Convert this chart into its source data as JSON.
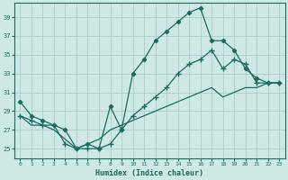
{
  "xlabel": "Humidex (Indice chaleur)",
  "bg_color": "#cde8e5",
  "grid_color": "#aaccca",
  "line_color": "#1a6b62",
  "xlim": [
    -0.5,
    23.5
  ],
  "ylim": [
    24.0,
    40.5
  ],
  "xticks": [
    0,
    1,
    2,
    3,
    4,
    5,
    6,
    7,
    8,
    9,
    10,
    11,
    12,
    13,
    14,
    15,
    16,
    17,
    18,
    19,
    20,
    21,
    22,
    23
  ],
  "yticks": [
    25,
    27,
    29,
    31,
    33,
    35,
    37,
    39
  ],
  "line1_x": [
    0,
    1,
    2,
    3,
    4,
    5,
    6,
    7,
    8,
    9,
    10,
    11,
    12,
    13,
    14,
    15,
    16,
    17,
    18,
    19,
    20,
    21,
    22,
    23
  ],
  "line1_y": [
    30.0,
    28.5,
    28.0,
    27.5,
    27.0,
    25.0,
    25.5,
    25.0,
    29.5,
    27.0,
    33.0,
    34.5,
    36.5,
    37.5,
    38.5,
    39.5,
    40.0,
    36.5,
    36.5,
    35.5,
    33.5,
    32.5,
    32.0,
    32.0
  ],
  "line2_x": [
    0,
    1,
    2,
    3,
    4,
    5,
    6,
    7,
    8,
    9,
    10,
    11,
    12,
    13,
    14,
    15,
    16,
    17,
    18,
    19,
    20,
    21,
    22,
    23
  ],
  "line2_y": [
    28.5,
    28.0,
    27.5,
    27.5,
    25.5,
    25.0,
    25.0,
    25.0,
    25.5,
    27.0,
    28.5,
    29.5,
    30.5,
    31.5,
    33.0,
    34.0,
    34.5,
    35.5,
    33.5,
    34.5,
    34.0,
    32.0,
    32.0,
    32.0
  ],
  "line3_x": [
    0,
    1,
    2,
    3,
    4,
    5,
    6,
    7,
    8,
    9,
    10,
    11,
    12,
    13,
    14,
    15,
    16,
    17,
    18,
    19,
    20,
    21,
    22,
    23
  ],
  "line3_y": [
    28.5,
    27.5,
    27.5,
    27.0,
    26.0,
    25.0,
    25.5,
    26.0,
    27.0,
    27.5,
    28.0,
    28.5,
    29.0,
    29.5,
    30.0,
    30.5,
    31.0,
    31.5,
    30.5,
    31.0,
    31.5,
    31.5,
    32.0,
    32.0
  ]
}
